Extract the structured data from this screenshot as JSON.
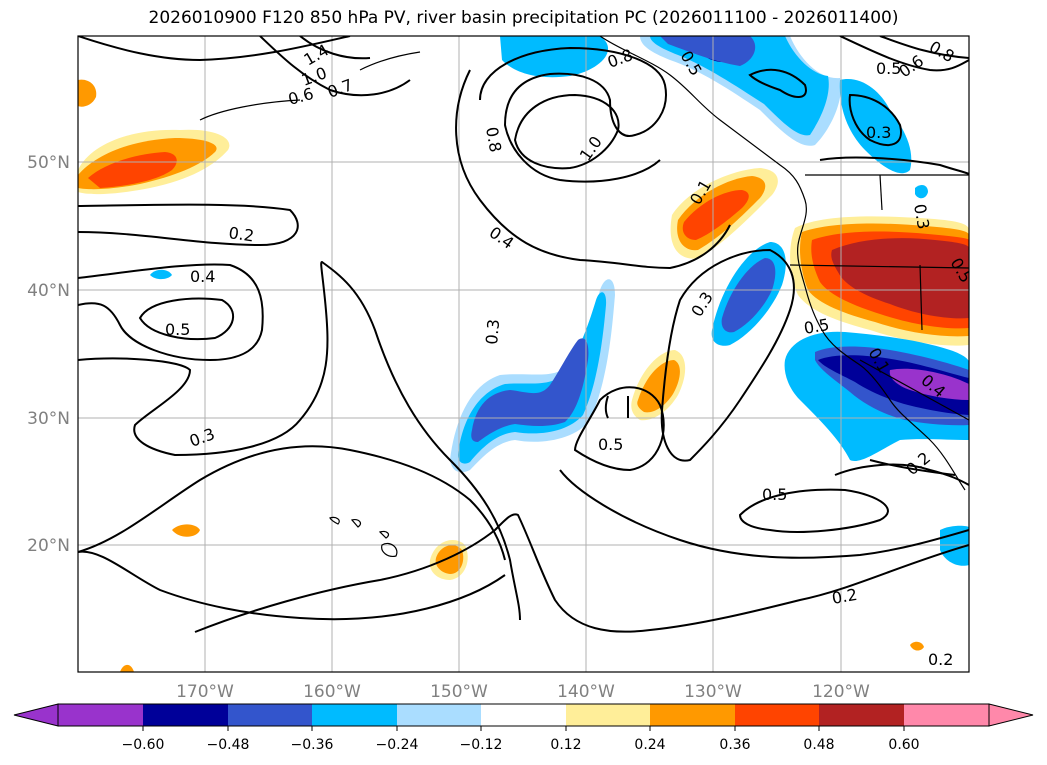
{
  "title": "2026010900 F120 850 hPa PV, river basin precipitation PC (2026011100 - 2026011400)",
  "map": {
    "lat_labels": [
      "50°N",
      "40°N",
      "30°N",
      "20°N"
    ],
    "lon_labels": [
      "170°W",
      "160°W",
      "150°W",
      "140°W",
      "130°W",
      "120°W"
    ],
    "grid": true,
    "label_color": "#808080"
  },
  "contour_labels": {
    "pv_1_0": "1.0",
    "pv_0_8": "0.8",
    "pv_0_4_west": "0.4",
    "pv_0_4_mid": "0.4",
    "pv_0_5_west": "0.5",
    "pv_0_2_west": "0.2",
    "pv_0_3_west": "0.3",
    "pv_0_3_mid": "0.3",
    "pv_0_3_east": "0.3",
    "pv_0_5_mid": "0.5",
    "pv_0_5_south": "0.5",
    "pv_0_2_south": "0.2",
    "pv_0_2_se": "0.2",
    "pv_1_4": "1.4",
    "pv_1_0_nw": "1.0",
    "pv_0_6_nw": "0.6",
    "pv_0_7_nw": "0.7",
    "pv_0_8_n": "0.8",
    "pv_0_5_n": "0.5",
    "pv_0_5_ne": "0.5",
    "pv_0_6_ne": "0.6",
    "pv_0_8_ne": "0.8",
    "pv_0_3_ne": "0.3",
    "pv_0_1_coast": "0.1",
    "pv_0_5_coast": "0.5",
    "pv_0_4_coast": "0.4",
    "pv_0_1_coast2": "0.1",
    "pv_0_2_coast": "0.2",
    "pv_0_3_coast": "0.3",
    "pv_0_5_ne2": "0.5"
  },
  "colorbar": {
    "ticks": [
      "−0.60",
      "−0.48",
      "−0.36",
      "−0.24",
      "−0.12",
      "0.12",
      "0.24",
      "0.36",
      "0.48",
      "0.60"
    ],
    "colors": [
      "#9933cc",
      "#000099",
      "#3355cc",
      "#00bbff",
      "#aaddff",
      "#ffffff",
      "#ffee99",
      "#ff9900",
      "#ff4400",
      "#b22222",
      "#ff88aa"
    ],
    "extend": "both"
  }
}
